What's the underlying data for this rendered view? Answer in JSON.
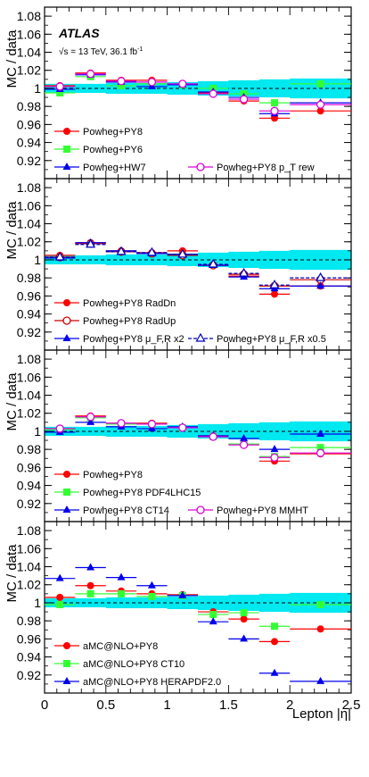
{
  "figure": {
    "experiment": "ATLAS",
    "energy_text": "√s = 13 TeV, 36.1 fb",
    "energy_sup": "-1",
    "ylabel": "MC / data",
    "xlabel": "Lepton |η|",
    "xticks": [
      "0",
      "0.5",
      "1",
      "1.5",
      "2",
      "2.5"
    ],
    "yticks": [
      "0.92",
      "0.94",
      "0.96",
      "0.98",
      "1",
      "1.02",
      "1.04",
      "1.06",
      "1.08"
    ]
  },
  "colors": {
    "band": "#00e8f0",
    "red": "#ff0000",
    "green": "#33ff33",
    "blue": "#0000ee",
    "magenta": "#dd00dd",
    "darkred": "#cc0000",
    "darkblue": "#0000bb"
  },
  "chart_data": [
    {
      "type": "scatter",
      "panel": 1,
      "xlim": [
        0,
        2.5
      ],
      "ylim": [
        0.9,
        1.1
      ],
      "x_bins": [
        [
          0.0,
          0.25
        ],
        [
          0.25,
          0.5
        ],
        [
          0.5,
          0.75
        ],
        [
          0.75,
          1.0
        ],
        [
          1.0,
          1.25
        ],
        [
          1.25,
          1.5
        ],
        [
          1.5,
          1.75
        ],
        [
          1.75,
          2.0
        ],
        [
          2.0,
          2.5
        ]
      ],
      "band": [
        0.005,
        0.005,
        0.006,
        0.006,
        0.007,
        0.008,
        0.009,
        0.01,
        0.011
      ],
      "series": [
        {
          "name": "Powheg+PY8",
          "color": "red",
          "marker": "circle",
          "values": [
            1.003,
            1.017,
            1.009,
            1.009,
            1.004,
            0.995,
            0.986,
            0.967,
            0.975
          ]
        },
        {
          "name": "Powheg+PY6",
          "color": "green",
          "marker": "square",
          "values": [
            0.995,
            1.013,
            1.003,
            1.005,
            1.004,
            1.0,
            0.994,
            0.984,
            1.005
          ]
        },
        {
          "name": "Powheg+HW7",
          "color": "blue",
          "marker": "triangle",
          "values": [
            0.999,
            1.015,
            1.007,
            1.002,
            1.004,
            0.996,
            0.99,
            0.972,
            0.984
          ]
        },
        {
          "name": "Powheg+PY8 p_T rew",
          "color": "magenta",
          "marker": "opencircle",
          "values": [
            1.002,
            1.016,
            1.008,
            1.007,
            1.005,
            0.994,
            0.988,
            0.975,
            0.982
          ]
        }
      ]
    },
    {
      "type": "scatter",
      "panel": 2,
      "xlim": [
        0,
        2.5
      ],
      "ylim": [
        0.9,
        1.1
      ],
      "x_bins": [
        [
          0.0,
          0.25
        ],
        [
          0.25,
          0.5
        ],
        [
          0.5,
          0.75
        ],
        [
          0.75,
          1.0
        ],
        [
          1.0,
          1.25
        ],
        [
          1.25,
          1.5
        ],
        [
          1.5,
          1.75
        ],
        [
          1.75,
          2.0
        ],
        [
          2.0,
          2.5
        ]
      ],
      "band": [
        0.005,
        0.005,
        0.006,
        0.006,
        0.007,
        0.008,
        0.009,
        0.01,
        0.011
      ],
      "series": [
        {
          "name": "Powheg+PY8 RadDn",
          "color": "red",
          "marker": "circle",
          "values": [
            1.005,
            1.019,
            1.01,
            1.008,
            1.01,
            0.994,
            0.982,
            0.962,
            0.971
          ]
        },
        {
          "name": "Powheg+PY8 RadUp",
          "color": "darkred",
          "marker": "opencircle",
          "values": [
            1.003,
            1.018,
            1.009,
            1.007,
            1.005,
            0.994,
            0.984,
            0.971,
            0.978
          ]
        },
        {
          "name": "Powheg+PY8 μ_F,R x2",
          "color": "blue",
          "marker": "triangle",
          "values": [
            1.002,
            1.019,
            1.01,
            1.007,
            1.006,
            0.994,
            0.981,
            0.968,
            0.971
          ]
        },
        {
          "name": "Powheg+PY8 μ_F,R x0.5",
          "color": "darkblue",
          "marker": "opentriangle",
          "dashed": true,
          "values": [
            1.003,
            1.017,
            1.009,
            1.008,
            1.006,
            0.995,
            0.985,
            0.972,
            0.98
          ]
        }
      ]
    },
    {
      "type": "scatter",
      "panel": 3,
      "xlim": [
        0,
        2.5
      ],
      "ylim": [
        0.9,
        1.1
      ],
      "x_bins": [
        [
          0.0,
          0.25
        ],
        [
          0.25,
          0.5
        ],
        [
          0.5,
          0.75
        ],
        [
          0.75,
          1.0
        ],
        [
          1.0,
          1.25
        ],
        [
          1.25,
          1.5
        ],
        [
          1.5,
          1.75
        ],
        [
          1.75,
          2.0
        ],
        [
          2.0,
          2.5
        ]
      ],
      "band": [
        0.005,
        0.005,
        0.006,
        0.006,
        0.007,
        0.008,
        0.009,
        0.01,
        0.011
      ],
      "series": [
        {
          "name": "Powheg+PY8",
          "color": "red",
          "marker": "circle",
          "values": [
            1.003,
            1.017,
            1.009,
            1.009,
            1.004,
            0.995,
            0.986,
            0.967,
            0.975
          ]
        },
        {
          "name": "Powheg+PY8 PDF4LHC15",
          "color": "green",
          "marker": "square",
          "values": [
            1.002,
            1.015,
            1.008,
            1.008,
            1.004,
            0.994,
            0.986,
            0.972,
            0.982
          ]
        },
        {
          "name": "Powheg+PY8 CT14",
          "color": "blue",
          "marker": "triangle",
          "values": [
            0.999,
            1.01,
            1.005,
            1.003,
            1.005,
            0.995,
            0.992,
            0.98,
            0.997
          ]
        },
        {
          "name": "Powheg+PY8 MMHT",
          "color": "magenta",
          "marker": "opencircle",
          "values": [
            1.003,
            1.016,
            1.009,
            1.008,
            1.004,
            0.994,
            0.985,
            0.971,
            0.976
          ]
        }
      ]
    },
    {
      "type": "scatter",
      "panel": 4,
      "xlim": [
        0,
        2.5
      ],
      "ylim": [
        0.9,
        1.1
      ],
      "x_bins": [
        [
          0.0,
          0.25
        ],
        [
          0.25,
          0.5
        ],
        [
          0.5,
          0.75
        ],
        [
          0.75,
          1.0
        ],
        [
          1.0,
          1.25
        ],
        [
          1.25,
          1.5
        ],
        [
          1.5,
          1.75
        ],
        [
          1.75,
          2.0
        ],
        [
          2.0,
          2.5
        ]
      ],
      "band": [
        0.005,
        0.005,
        0.006,
        0.006,
        0.007,
        0.008,
        0.009,
        0.01,
        0.011
      ],
      "series": [
        {
          "name": "aMC@NLO+PY8",
          "color": "red",
          "marker": "circle",
          "values": [
            1.006,
            1.019,
            1.013,
            1.01,
            1.009,
            0.99,
            0.982,
            0.957,
            0.971
          ]
        },
        {
          "name": "aMC@NLO+PY8 CT10",
          "color": "green",
          "marker": "square",
          "values": [
            0.998,
            1.01,
            1.01,
            1.007,
            1.008,
            0.987,
            0.989,
            0.974,
            0.998
          ]
        },
        {
          "name": "aMC@NLO+PY8 HERAPDF2.0",
          "color": "blue",
          "marker": "triangle",
          "values": [
            1.027,
            1.039,
            1.028,
            1.019,
            1.008,
            0.979,
            0.96,
            0.922,
            0.913
          ]
        }
      ]
    }
  ]
}
